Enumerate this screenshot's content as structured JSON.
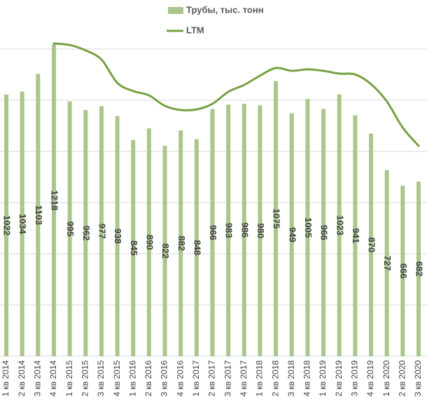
{
  "chart_data": {
    "type": "bar",
    "categories": [
      "1 кв 2014",
      "2 кв 2014",
      "3 кв 2014",
      "4 кв 2014",
      "1 кв 2015",
      "2 кв 2015",
      "3 кв 2015",
      "4 кв 2015",
      "1 кв 2016",
      "2 кв 2016",
      "3 кв 2016",
      "4 кв 2016",
      "1 кв 2017",
      "2 кв 2017",
      "3 кв 2017",
      "4 кв 2017",
      "1 кв 2018",
      "2 кв 2018",
      "3 кв 2018",
      "4 кв 2018",
      "1 кв 2019",
      "2 кв 2019",
      "3 кв 2019",
      "4 кв 2019",
      "1 кв 2020",
      "2 кв 2020",
      "3 кв 2020"
    ],
    "series": [
      {
        "name": "Трубы, тыс. тонн",
        "type": "bar",
        "color": "#a9c78a",
        "values": [
          1022,
          1034,
          1103,
          1218,
          995,
          962,
          977,
          938,
          845,
          890,
          822,
          882,
          848,
          966,
          983,
          986,
          980,
          1075,
          949,
          1005,
          966,
          1023,
          941,
          870,
          727,
          666,
          682
        ]
      },
      {
        "name": "LTM",
        "type": "line",
        "color": "#77a043",
        "values": [
          null,
          null,
          null,
          1222,
          1216,
          1195,
          1159,
          1068,
          1036,
          1019,
          978,
          962,
          964,
          986,
          1033,
          1060,
          1096,
          1126,
          1115,
          1121,
          1115,
          1104,
          1101,
          1063,
          995,
          893,
          822
        ]
      }
    ],
    "ylim": [
      0,
      1400
    ],
    "yticks": [
      0,
      200,
      400,
      600,
      800,
      1000,
      1200,
      1400
    ],
    "grid": true,
    "legend": "top"
  }
}
